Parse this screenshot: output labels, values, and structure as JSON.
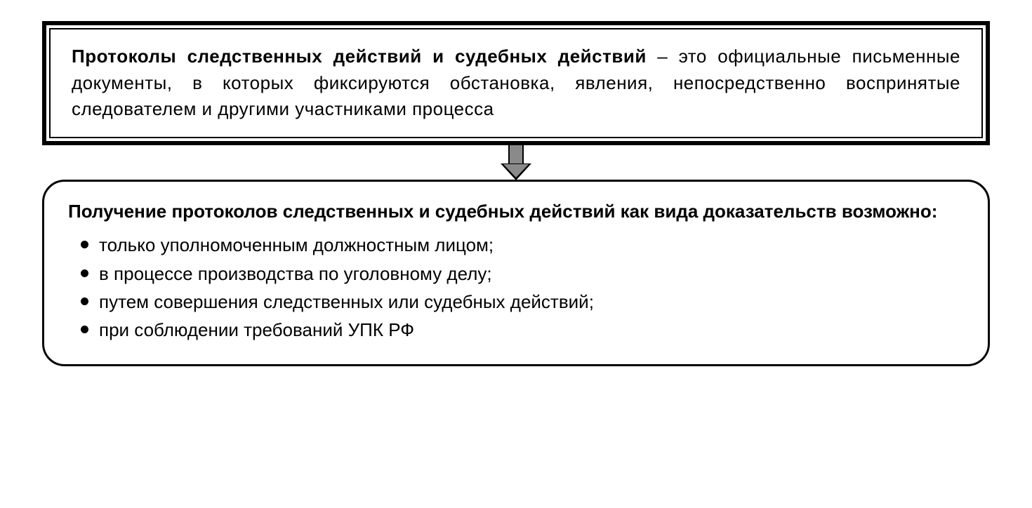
{
  "diagram": {
    "type": "flowchart",
    "direction": "vertical",
    "background_color": "#ffffff",
    "font_family": "Arial",
    "top_box": {
      "border_outer_width": 6,
      "border_inner_width": 2,
      "border_color": "#000000",
      "font_size": 26,
      "text_align": "justify",
      "bold_term": "Протоколы следственных действий и судебных действий",
      "dash": " – ",
      "definition": "это официальные письменные документы, в которых фиксируются обстановка, явления, непосредственно воспринятые следователем и другими участниками процесса"
    },
    "arrow": {
      "fill_color": "#8a8a8a",
      "stroke_color": "#000000",
      "stem_width": 22,
      "stem_height": 28,
      "head_width": 44,
      "head_height": 24
    },
    "bottom_box": {
      "border_width": 3,
      "border_color": "#000000",
      "border_radius": 32,
      "font_size": 26,
      "title": "Получение протоколов следственных и судебных действий как вида доказательств возможно:",
      "bullet_marker": "disc",
      "items": [
        "только уполномоченным должностным лицом;",
        "в процессе производства по уголовному делу;",
        "путем совершения следственных или судебных действий;",
        "при соблюдении  требований УПК РФ"
      ]
    }
  }
}
